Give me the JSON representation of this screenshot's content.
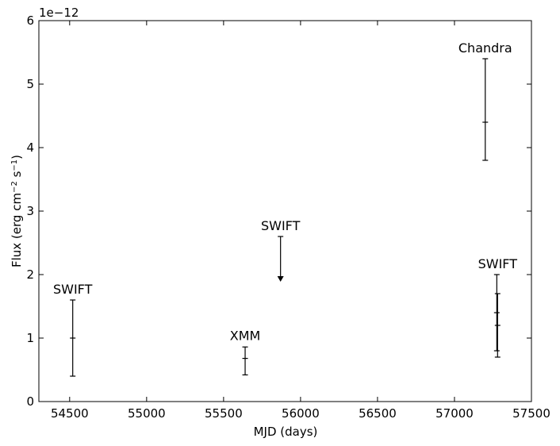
{
  "chart_data": {
    "type": "scatter",
    "title": "",
    "xlabel": "MJD (days)",
    "ylabel": "Flux (erg cm",
    "ylabel_sup1": "−2",
    "ylabel_mid": " s",
    "ylabel_sup2": "−1",
    "ylabel_end": ")",
    "y_offset_label": "1e−12",
    "xlim": [
      54300,
      57500
    ],
    "ylim": [
      0,
      6
    ],
    "xticks": [
      54500,
      55000,
      55500,
      56000,
      56500,
      57000,
      57500
    ],
    "yticks": [
      0,
      1,
      2,
      3,
      4,
      5,
      6
    ],
    "grid": false,
    "legend": "none",
    "points": [
      {
        "x": 54520,
        "y": 1.0,
        "ylo": 0.4,
        "yhi": 1.6
      },
      {
        "x": 55640,
        "y": 0.68,
        "ylo": 0.42,
        "yhi": 0.86
      },
      {
        "x": 55870,
        "y": 2.6,
        "upper_limit": true
      },
      {
        "x": 57200,
        "y": 4.4,
        "ylo": 3.8,
        "yhi": 5.4
      },
      {
        "x": 57275,
        "y": 1.4,
        "ylo": 0.8,
        "yhi": 2.0
      },
      {
        "x": 57280,
        "y": 1.2,
        "ylo": 0.7,
        "yhi": 1.7
      }
    ],
    "annotations": [
      {
        "text": "SWIFT",
        "x": 54520,
        "y": 1.75
      },
      {
        "text": "XMM",
        "x": 55640,
        "y": 1.02
      },
      {
        "text": "SWIFT",
        "x": 55870,
        "y": 2.75
      },
      {
        "text": "Chandra",
        "x": 57200,
        "y": 5.55
      },
      {
        "text": "SWIFT",
        "x": 57280,
        "y": 2.15
      }
    ]
  }
}
